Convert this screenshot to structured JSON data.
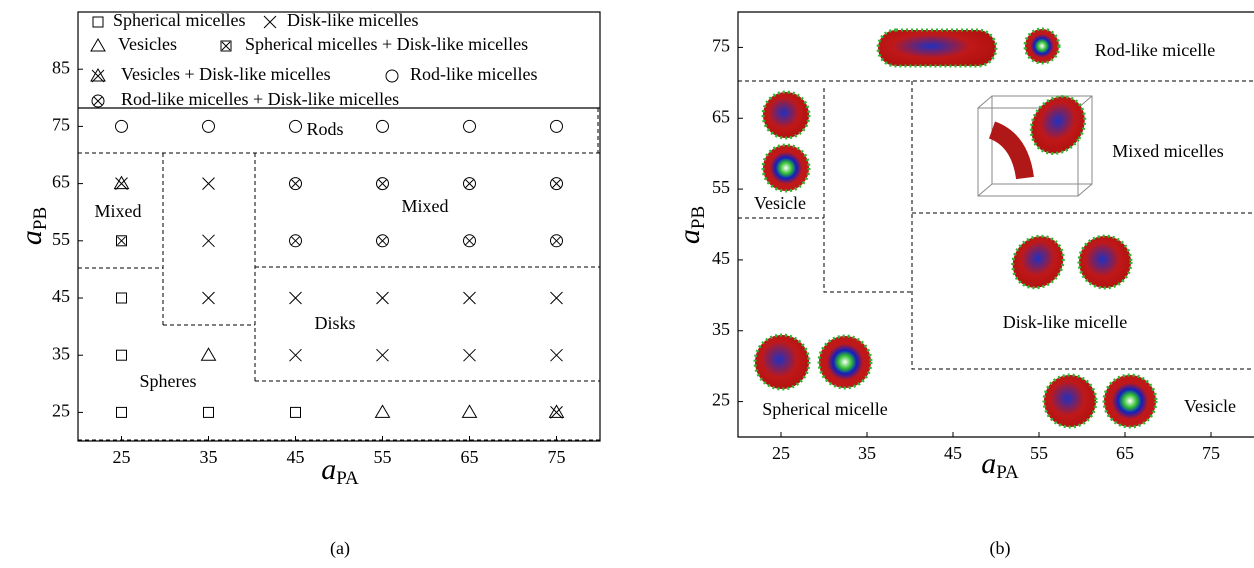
{
  "chart_data": [
    {
      "type": "scatter",
      "caption": "(a)",
      "x_label": "a",
      "x_label_sub": "PA",
      "y_label": "a",
      "y_label_sub": "PB",
      "xlim": [
        20,
        80
      ],
      "xticks": [
        25,
        35,
        45,
        55,
        65,
        75
      ],
      "ylim": [
        20,
        95
      ],
      "yticks": [
        25,
        35,
        45,
        55,
        65,
        75,
        85
      ],
      "series": [
        {
          "name": "Spherical micelles",
          "marker": "square",
          "color": "#000000",
          "x": [
            25,
            35,
            45,
            25,
            25
          ],
          "y": [
            25,
            25,
            25,
            35,
            45
          ]
        },
        {
          "name": "Disk-like micelles",
          "marker": "cross",
          "color": "#000000",
          "x": [
            35,
            45,
            55,
            65,
            75,
            45,
            55,
            65,
            75,
            35,
            35
          ],
          "y": [
            45,
            45,
            45,
            45,
            45,
            35,
            35,
            35,
            35,
            55,
            65
          ]
        },
        {
          "name": "Vesicles",
          "marker": "triangle",
          "color": "#000000",
          "x": [
            35,
            55,
            65
          ],
          "y": [
            35,
            25,
            25
          ]
        },
        {
          "name": "Spherical micelles + Disk-like micelles",
          "marker": "square-cross",
          "color": "#000000",
          "x": [
            25
          ],
          "y": [
            55
          ]
        },
        {
          "name": "Vesicles + Disk-like micelles",
          "marker": "triangle-cross",
          "color": "#000000",
          "x": [
            25,
            75
          ],
          "y": [
            65,
            25
          ]
        },
        {
          "name": "Rod-like micelles",
          "marker": "circle",
          "color": "#000000",
          "x": [
            25,
            35,
            45,
            55,
            65,
            75
          ],
          "y": [
            75,
            75,
            75,
            75,
            75,
            75
          ]
        },
        {
          "name": "Rod-like micelles + Disk-like micelles",
          "marker": "circle-cross",
          "color": "#000000",
          "x": [
            45,
            55,
            65,
            75,
            45,
            55,
            65,
            75
          ],
          "y": [
            55,
            55,
            55,
            55,
            65,
            65,
            65,
            65
          ]
        }
      ],
      "annotations": [
        "Rods",
        "Mixed",
        "Mixed",
        "Disks",
        "Spheres"
      ]
    },
    {
      "type": "phase",
      "caption": "(b)",
      "x_label": "a",
      "x_label_sub": "PA",
      "y_label": "a",
      "y_label_sub": "PB",
      "xlim": [
        20,
        80
      ],
      "xticks": [
        25,
        35,
        45,
        55,
        65,
        75
      ],
      "ylim": [
        20,
        80
      ],
      "yticks": [
        25,
        35,
        45,
        55,
        65,
        75
      ],
      "annotations": [
        "Rod-like micelle",
        "Mixed micelles",
        "Vesicle",
        "Disk-like micelle",
        "Spherical micelle",
        "Vesicle"
      ]
    }
  ]
}
